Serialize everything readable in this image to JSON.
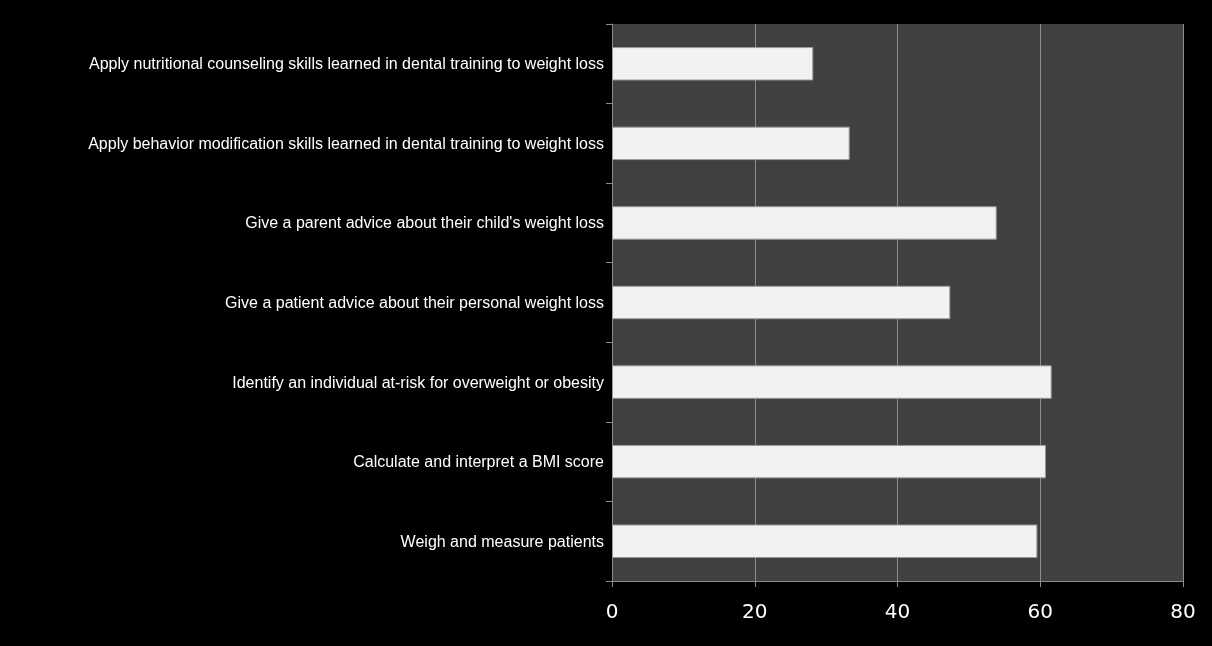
{
  "chart_data": {
    "type": "bar",
    "orientation": "horizontal",
    "categories": [
      "Apply nutritional counseling skills learned in dental training to weight loss",
      "Apply behavior modification skills learned in dental training to weight loss",
      "Give a parent advice about their child's weight loss",
      "Give a patient advice about their personal weight loss",
      "Identify an individual at-risk for overweight or obesity",
      "Calculate and interpret a BMI score",
      "Weigh and measure patients"
    ],
    "values": [
      28.2,
      33.3,
      53.9,
      47.4,
      61.6,
      60.8,
      59.6
    ],
    "color": "#f2f2f2",
    "xlim": [
      0,
      80
    ],
    "xticks": [
      0,
      20,
      40,
      60,
      80
    ],
    "grid": "x"
  }
}
